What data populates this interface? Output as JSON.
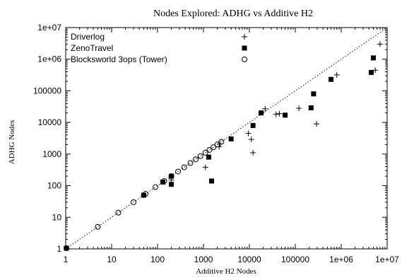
{
  "chart_data": {
    "type": "scatter",
    "title": "Nodes Explored: ADHG vs Additive H2",
    "xlabel": "Additive H2 Nodes",
    "ylabel": "ADHG Nodes",
    "xscale": "log",
    "yscale": "log",
    "xlim": [
      1,
      10000000
    ],
    "ylim": [
      1,
      10000000
    ],
    "grid": false,
    "legend_position": "top-left",
    "x_ticks": [
      "1",
      "10",
      "100",
      "1000",
      "10000",
      "100000",
      "1e+06",
      "1e+07"
    ],
    "y_ticks": [
      "1",
      "10",
      "100",
      "1000",
      "10000",
      "100000",
      "1e+06",
      "1e+07"
    ],
    "reference_line": "y = x",
    "series": [
      {
        "name": "Driverlog",
        "marker": "plus",
        "points": [
          [
            1,
            1
          ],
          [
            50,
            50
          ],
          [
            200,
            150
          ],
          [
            1100,
            380
          ],
          [
            2200,
            1700
          ],
          [
            2300,
            2100
          ],
          [
            9500,
            4500
          ],
          [
            11000,
            2900
          ],
          [
            12000,
            1100
          ],
          [
            22000,
            27000
          ],
          [
            38000,
            18000
          ],
          [
            45000,
            19000
          ],
          [
            120000,
            28000
          ],
          [
            290000,
            9000
          ],
          [
            800000,
            320000
          ],
          [
            5500000,
            450000
          ],
          [
            7000000,
            3000000
          ]
        ]
      },
      {
        "name": "ZenoTravel",
        "marker": "filled-square",
        "points": [
          [
            1,
            1
          ],
          [
            50,
            50
          ],
          [
            130,
            130
          ],
          [
            200,
            110
          ],
          [
            200,
            200
          ],
          [
            1300,
            800
          ],
          [
            1500,
            140
          ],
          [
            4000,
            3000
          ],
          [
            12000,
            8000
          ],
          [
            18000,
            20000
          ],
          [
            60000,
            17000
          ],
          [
            220000,
            29000
          ],
          [
            250000,
            80000
          ],
          [
            600000,
            230000
          ],
          [
            4500000,
            380000
          ],
          [
            5000000,
            1100000
          ]
        ]
      },
      {
        "name": "Blocksworld 3ops (Tower)",
        "marker": "open-circle",
        "points": [
          [
            1,
            1
          ],
          [
            5,
            5
          ],
          [
            14,
            14
          ],
          [
            30,
            30
          ],
          [
            55,
            55
          ],
          [
            90,
            90
          ],
          [
            140,
            140
          ],
          [
            200,
            200
          ],
          [
            280,
            280
          ],
          [
            380,
            380
          ],
          [
            520,
            520
          ],
          [
            680,
            680
          ],
          [
            860,
            860
          ],
          [
            1100,
            1100
          ],
          [
            1350,
            1350
          ],
          [
            1650,
            1650
          ],
          [
            2000,
            2000
          ],
          [
            2450,
            2450
          ]
        ]
      }
    ]
  }
}
